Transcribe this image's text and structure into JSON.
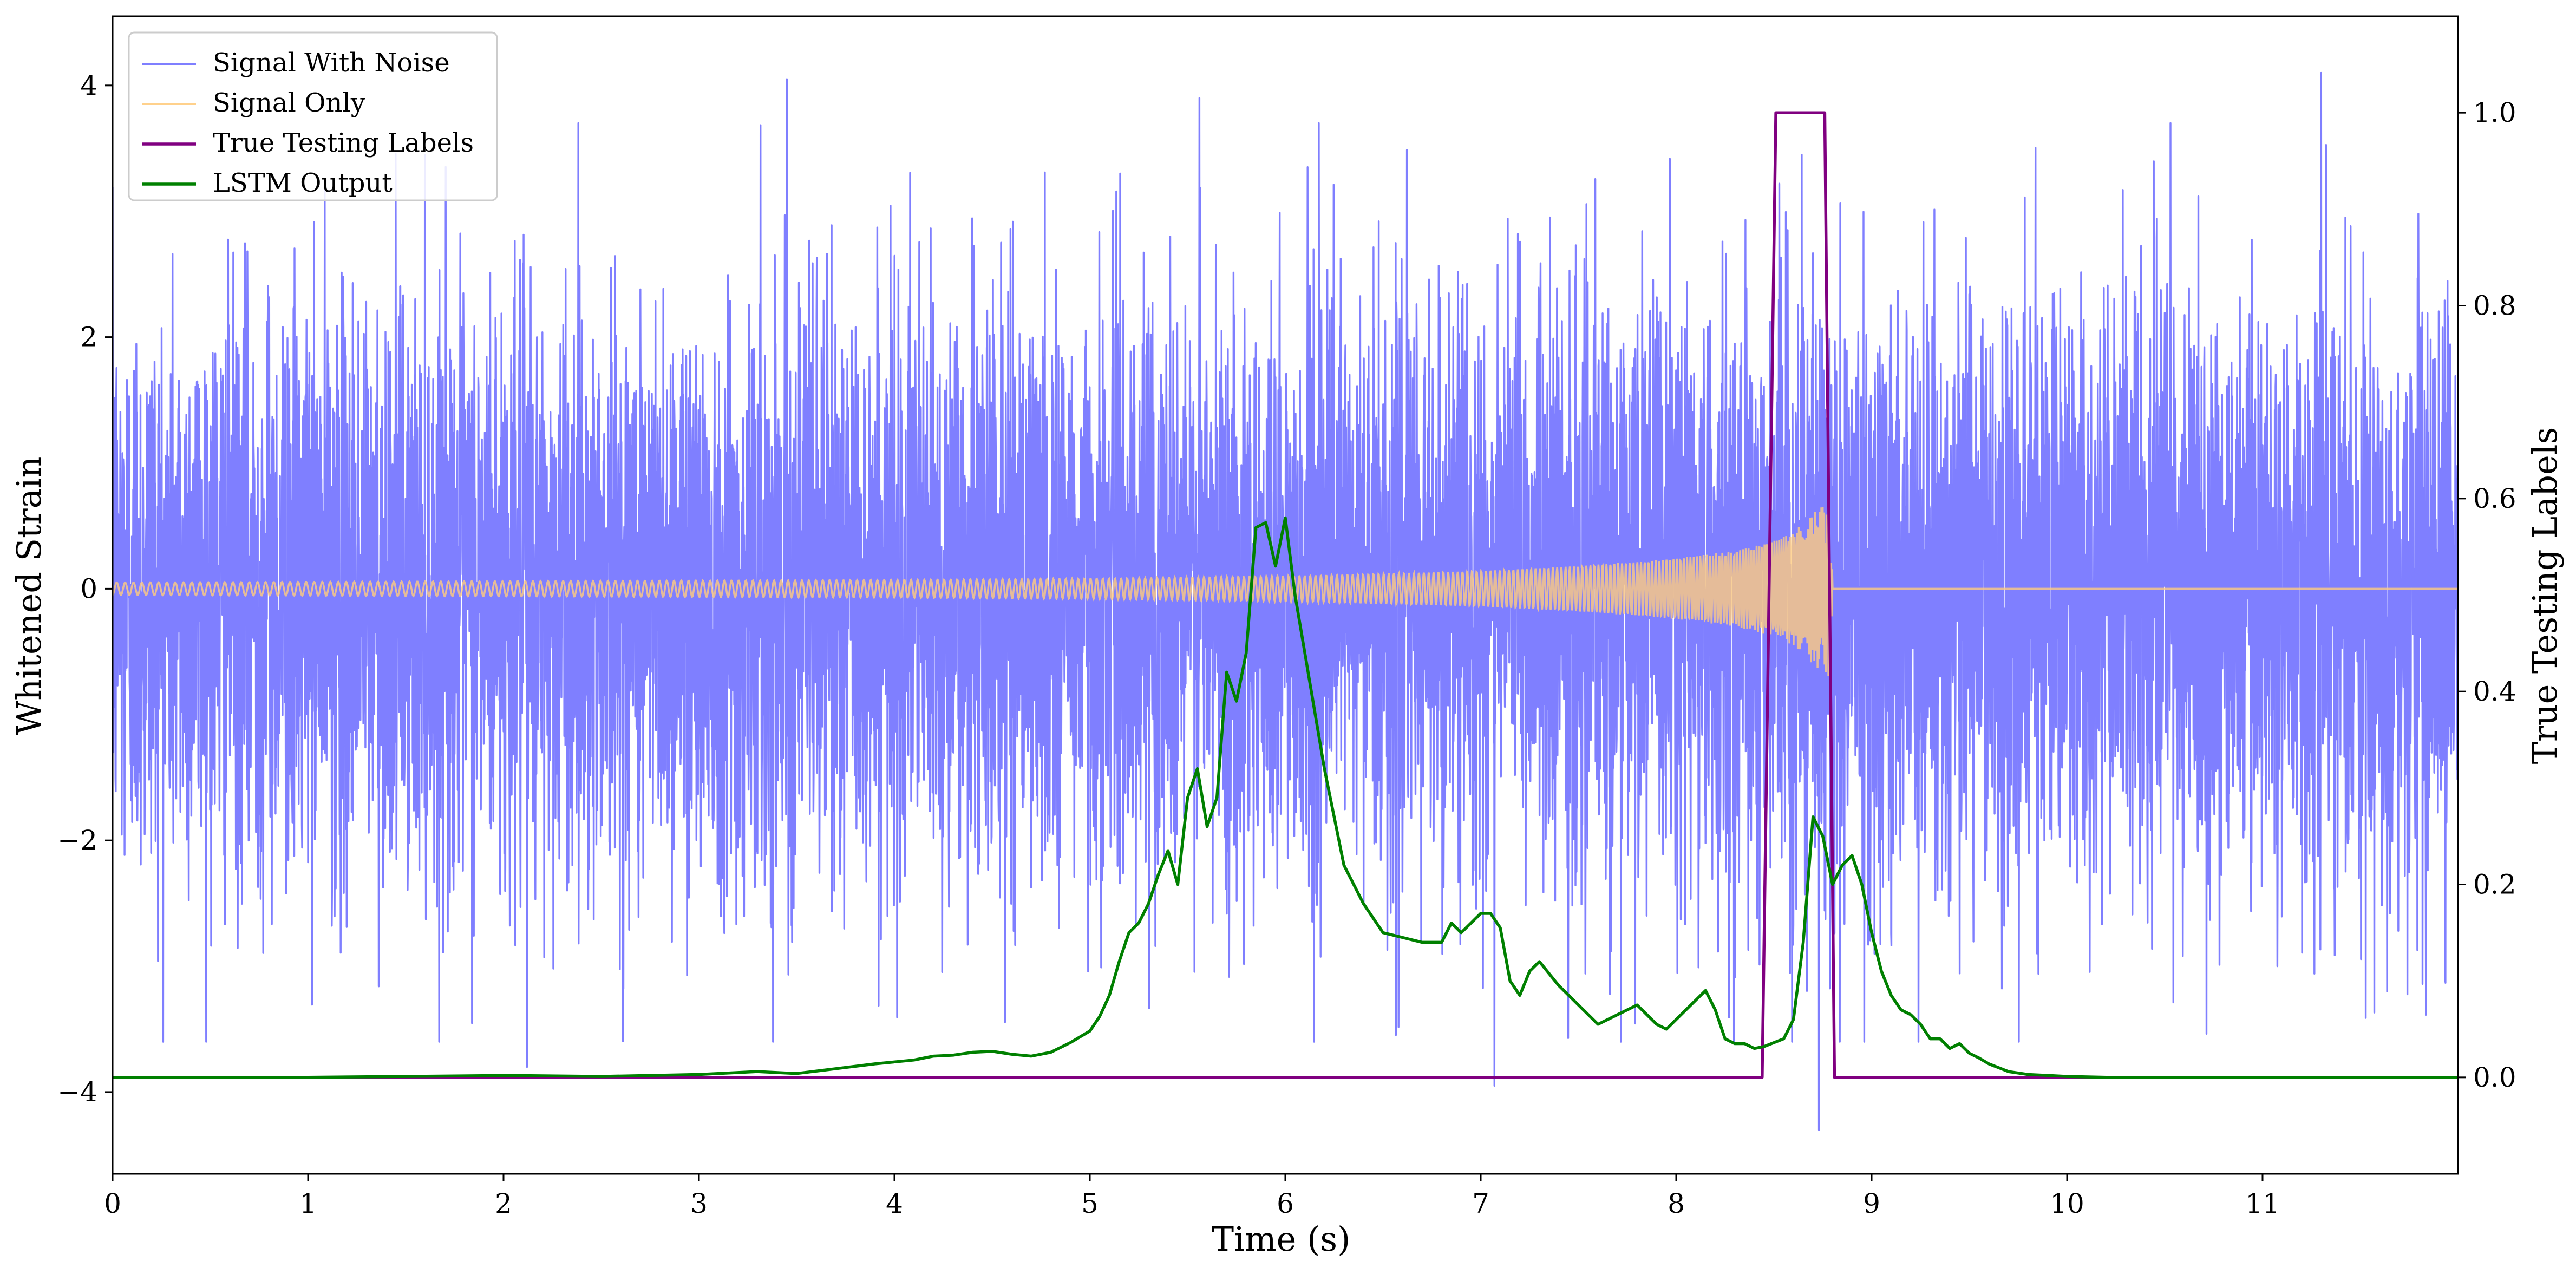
{
  "chart_data": {
    "type": "line",
    "title": "",
    "xlabel": "Time (s)",
    "ylabel": "Whitened Strain",
    "y2label": "True Testing Labels",
    "xlim": [
      0,
      12
    ],
    "ylim": [
      -4.65,
      4.55
    ],
    "y2lim": [
      -0.1,
      1.1
    ],
    "x_ticks": [
      "0",
      "1",
      "2",
      "3",
      "4",
      "5",
      "6",
      "7",
      "8",
      "9",
      "10",
      "11"
    ],
    "y_ticks": [
      "4",
      "2",
      "0",
      "−2",
      "−4"
    ],
    "y2_ticks": [
      "1.0",
      "0.8",
      "0.6",
      "0.4",
      "0.2",
      "0.0"
    ],
    "grid": false,
    "legend_position": "top-left",
    "series": [
      {
        "name": "Signal With Noise",
        "axis": "left",
        "color": "#7f7fff",
        "description": "white noise, roughly ±1.5 typical, peaks near ±4",
        "x_range": [
          0,
          12
        ],
        "notable_points": [
          [
            3.45,
            4.05
          ],
          [
            5.56,
            3.9
          ],
          [
            11.3,
            4.1
          ],
          [
            8.73,
            -4.3
          ],
          [
            7.07,
            -3.95
          ],
          [
            2.12,
            -3.8
          ]
        ]
      },
      {
        "name": "Signal Only",
        "axis": "left",
        "color": "#ffcc80",
        "description": "chirp with growing amplitude, merging at ~8.8 s",
        "envelope": {
          "x": [
            0,
            2,
            4,
            5,
            6,
            7,
            7.5,
            8,
            8.3,
            8.5,
            8.6,
            8.7,
            8.8,
            8.81,
            12
          ],
          "y": [
            0.05,
            0.06,
            0.07,
            0.08,
            0.1,
            0.14,
            0.18,
            0.24,
            0.3,
            0.38,
            0.45,
            0.6,
            0.72,
            0,
            0
          ]
        }
      },
      {
        "name": "True Testing Labels",
        "axis": "right",
        "color": "#800080",
        "x": [
          0,
          8.44,
          8.51,
          8.76,
          8.81,
          12
        ],
        "y": [
          0,
          0,
          1,
          1,
          0,
          0
        ]
      },
      {
        "name": "LSTM Output",
        "axis": "right",
        "color": "#008000",
        "x": [
          0,
          1,
          1.5,
          2,
          2.5,
          3,
          3.3,
          3.5,
          3.7,
          3.9,
          4.0,
          4.1,
          4.2,
          4.3,
          4.4,
          4.5,
          4.6,
          4.7,
          4.8,
          4.9,
          5.0,
          5.05,
          5.1,
          5.15,
          5.2,
          5.25,
          5.3,
          5.35,
          5.4,
          5.45,
          5.5,
          5.55,
          5.6,
          5.65,
          5.7,
          5.75,
          5.8,
          5.85,
          5.9,
          5.95,
          6.0,
          6.05,
          6.1,
          6.2,
          6.3,
          6.4,
          6.5,
          6.6,
          6.7,
          6.75,
          6.8,
          6.85,
          6.9,
          6.95,
          7.0,
          7.05,
          7.1,
          7.15,
          7.2,
          7.25,
          7.3,
          7.4,
          7.5,
          7.6,
          7.7,
          7.75,
          7.8,
          7.85,
          7.9,
          7.95,
          8.0,
          8.05,
          8.1,
          8.15,
          8.2,
          8.25,
          8.3,
          8.35,
          8.4,
          8.45,
          8.5,
          8.55,
          8.6,
          8.65,
          8.7,
          8.75,
          8.8,
          8.85,
          8.9,
          8.95,
          9.0,
          9.05,
          9.1,
          9.15,
          9.2,
          9.25,
          9.3,
          9.35,
          9.4,
          9.45,
          9.5,
          9.55,
          9.6,
          9.7,
          9.8,
          9.9,
          10.0,
          10.2,
          10.5,
          11,
          12
        ],
        "y": [
          0,
          0,
          0.001,
          0.002,
          0.001,
          0.003,
          0.006,
          0.004,
          0.009,
          0.014,
          0.016,
          0.018,
          0.022,
          0.023,
          0.026,
          0.027,
          0.024,
          0.022,
          0.026,
          0.036,
          0.048,
          0.063,
          0.085,
          0.12,
          0.15,
          0.16,
          0.18,
          0.21,
          0.235,
          0.2,
          0.29,
          0.32,
          0.26,
          0.29,
          0.42,
          0.39,
          0.44,
          0.57,
          0.575,
          0.53,
          0.58,
          0.5,
          0.44,
          0.32,
          0.22,
          0.18,
          0.15,
          0.145,
          0.14,
          0.14,
          0.14,
          0.16,
          0.15,
          0.16,
          0.17,
          0.17,
          0.155,
          0.1,
          0.085,
          0.11,
          0.12,
          0.095,
          0.075,
          0.055,
          0.065,
          0.07,
          0.075,
          0.065,
          0.055,
          0.05,
          0.06,
          0.07,
          0.08,
          0.09,
          0.07,
          0.04,
          0.035,
          0.035,
          0.03,
          0.032,
          0.036,
          0.04,
          0.06,
          0.14,
          0.27,
          0.25,
          0.2,
          0.22,
          0.23,
          0.2,
          0.15,
          0.11,
          0.085,
          0.07,
          0.065,
          0.055,
          0.04,
          0.04,
          0.03,
          0.035,
          0.025,
          0.02,
          0.014,
          0.006,
          0.003,
          0.002,
          0.001,
          0,
          0,
          0,
          0
        ]
      }
    ]
  }
}
